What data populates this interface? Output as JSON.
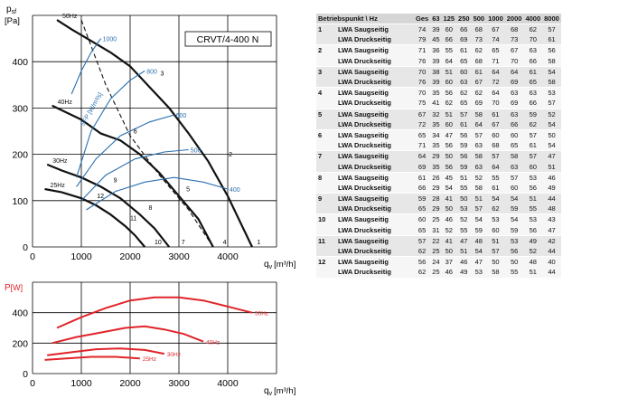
{
  "chart_data": [
    {
      "type": "line",
      "title": "CRVT/4-400 N",
      "ylabel_main": "p",
      "ylabel_sub": "sf",
      "yunit": "[Pa]",
      "xlabel_main": "q",
      "xlabel_sub": "v",
      "xunit": "[m³/h]",
      "xlim": [
        0,
        5000
      ],
      "ylim": [
        0,
        500
      ],
      "x_ticks": [
        "0",
        "1000",
        "2000",
        "3000",
        "4000"
      ],
      "y_ticks": [
        "0",
        "100",
        "200",
        "300",
        "400"
      ],
      "grid": true,
      "colors": {
        "fan_curves": "#111111",
        "sfp_curves": "#2a6fb0",
        "system_curves": "#111111"
      },
      "series": [
        {
          "name": "50Hz",
          "kind": "fan",
          "x": [
            500,
            800,
            1200,
            1600,
            2000,
            2400,
            2800,
            3200,
            3600,
            4000,
            4500
          ],
          "y": [
            490,
            470,
            445,
            420,
            390,
            345,
            300,
            245,
            185,
            110,
            0
          ]
        },
        {
          "name": "40Hz",
          "kind": "fan",
          "x": [
            400,
            700,
            1000,
            1400,
            1800,
            2200,
            2600,
            3000,
            3400,
            3700
          ],
          "y": [
            305,
            290,
            275,
            245,
            230,
            200,
            160,
            110,
            60,
            0
          ]
        },
        {
          "name": "30Hz",
          "kind": "fan",
          "x": [
            300,
            600,
            1000,
            1400,
            1800,
            2200,
            2500,
            2800
          ],
          "y": [
            178,
            165,
            150,
            130,
            105,
            70,
            40,
            0
          ]
        },
        {
          "name": "25Hz",
          "kind": "fan",
          "x": [
            250,
            600,
            1000,
            1300,
            1600,
            1900,
            2100,
            2300
          ],
          "y": [
            125,
            118,
            105,
            90,
            70,
            45,
            25,
            0
          ]
        },
        {
          "kind": "system",
          "x": [
            1000,
            1500,
            2000,
            2600,
            3200,
            3700
          ],
          "y": [
            490,
            350,
            240,
            155,
            80,
            0
          ]
        },
        {
          "name": "1000",
          "kind": "sfp",
          "x": [
            800,
            1000,
            1200,
            1400
          ],
          "y": [
            330,
            380,
            420,
            450
          ]
        },
        {
          "name": "800",
          "kind": "sfp",
          "x": [
            900,
            1200,
            1600,
            2000,
            2300
          ],
          "y": [
            150,
            250,
            320,
            360,
            380
          ]
        },
        {
          "name": "600",
          "kind": "sfp",
          "x": [
            900,
            1300,
            1800,
            2400,
            2900
          ],
          "y": [
            130,
            190,
            240,
            270,
            285
          ]
        },
        {
          "name": "500",
          "kind": "sfp",
          "x": [
            1000,
            1500,
            2100,
            2700,
            3200
          ],
          "y": [
            100,
            155,
            190,
            205,
            210
          ]
        },
        {
          "name": "400",
          "kind": "sfp",
          "x": [
            1100,
            1700,
            2300,
            2900,
            3500,
            4000
          ],
          "y": [
            80,
            120,
            140,
            150,
            140,
            125
          ]
        }
      ],
      "sfp_label": "SFP [W/m³/s]",
      "system_curve_labels": [
        "1",
        "4",
        "7",
        "10"
      ],
      "operating_points": [
        {
          "label": "2",
          "x": 4020,
          "y": 195
        },
        {
          "label": "3",
          "x": 2620,
          "y": 370
        },
        {
          "label": "5",
          "x": 3150,
          "y": 120
        },
        {
          "label": "6",
          "x": 2070,
          "y": 245
        },
        {
          "label": "8",
          "x": 2380,
          "y": 80
        },
        {
          "label": "9",
          "x": 1660,
          "y": 140
        },
        {
          "label": "11",
          "x": 2000,
          "y": 58
        },
        {
          "label": "12",
          "x": 1320,
          "y": 105
        }
      ]
    },
    {
      "type": "line",
      "ylabel_main": "P",
      "yunit": "[W]",
      "xlabel_main": "q",
      "xlabel_sub": "v",
      "xunit": "[m³/h]",
      "xlim": [
        0,
        5000
      ],
      "ylim": [
        0,
        600
      ],
      "x_ticks": [
        "0",
        "1000",
        "2000",
        "3000",
        "4000"
      ],
      "y_ticks": [
        "0",
        "200",
        "400"
      ],
      "grid": true,
      "colors": {
        "curves": "#e0242a"
      },
      "series": [
        {
          "name": "50Hz",
          "x": [
            500,
            1000,
            1500,
            2000,
            2500,
            3000,
            3500,
            4000,
            4500
          ],
          "y": [
            300,
            370,
            430,
            480,
            500,
            500,
            480,
            440,
            400
          ]
        },
        {
          "name": "40Hz",
          "x": [
            400,
            900,
            1400,
            1900,
            2300,
            2700,
            3100,
            3500
          ],
          "y": [
            200,
            240,
            270,
            300,
            310,
            290,
            260,
            210
          ]
        },
        {
          "name": "30Hz",
          "x": [
            300,
            800,
            1300,
            1800,
            2300,
            2700
          ],
          "y": [
            120,
            140,
            160,
            165,
            155,
            130
          ]
        },
        {
          "name": "25Hz",
          "x": [
            250,
            700,
            1200,
            1700,
            2200
          ],
          "y": [
            90,
            100,
            110,
            110,
            100
          ]
        }
      ]
    }
  ],
  "table": {
    "headers": [
      "Betriebspunkt \\ Hz",
      "Ges",
      "63",
      "125",
      "250",
      "500",
      "1000",
      "2000",
      "4000",
      "8000"
    ],
    "groups": [
      {
        "point": "1",
        "rows": [
          {
            "label": "LWA Saugseitig",
            "values": [
              "74",
              "39",
              "60",
              "66",
              "68",
              "67",
              "68",
              "62",
              "57"
            ]
          },
          {
            "label": "LWA Druckseitig",
            "values": [
              "79",
              "45",
              "66",
              "69",
              "73",
              "74",
              "73",
              "70",
              "61"
            ]
          }
        ]
      },
      {
        "point": "2",
        "rows": [
          {
            "label": "LWA Saugseitig",
            "values": [
              "71",
              "36",
              "55",
              "61",
              "62",
              "65",
              "67",
              "63",
              "56"
            ]
          },
          {
            "label": "LWA Druckseitig",
            "values": [
              "76",
              "39",
              "64",
              "65",
              "68",
              "71",
              "70",
              "66",
              "58"
            ]
          }
        ]
      },
      {
        "point": "3",
        "rows": [
          {
            "label": "LWA Saugseitig",
            "values": [
              "70",
              "38",
              "51",
              "60",
              "61",
              "64",
              "64",
              "61",
              "54"
            ]
          },
          {
            "label": "LWA Druckseitig",
            "values": [
              "76",
              "39",
              "60",
              "63",
              "67",
              "72",
              "69",
              "65",
              "58"
            ]
          }
        ]
      },
      {
        "point": "4",
        "rows": [
          {
            "label": "LWA Saugseitig",
            "values": [
              "70",
              "35",
              "56",
              "62",
              "62",
              "64",
              "63",
              "63",
              "53"
            ]
          },
          {
            "label": "LWA Druckseitig",
            "values": [
              "75",
              "41",
              "62",
              "65",
              "69",
              "70",
              "69",
              "66",
              "57"
            ]
          }
        ]
      },
      {
        "point": "5",
        "rows": [
          {
            "label": "LWA Saugseitig",
            "values": [
              "67",
              "32",
              "51",
              "57",
              "58",
              "61",
              "63",
              "59",
              "52"
            ]
          },
          {
            "label": "LWA Druckseitig",
            "values": [
              "72",
              "35",
              "60",
              "61",
              "64",
              "67",
              "66",
              "62",
              "54"
            ]
          }
        ]
      },
      {
        "point": "6",
        "rows": [
          {
            "label": "LWA Saugseitig",
            "values": [
              "65",
              "34",
              "47",
              "56",
              "57",
              "60",
              "60",
              "57",
              "50"
            ]
          },
          {
            "label": "LWA Druckseitig",
            "values": [
              "71",
              "35",
              "56",
              "59",
              "63",
              "68",
              "65",
              "61",
              "54"
            ]
          }
        ]
      },
      {
        "point": "7",
        "rows": [
          {
            "label": "LWA Saugseitig",
            "values": [
              "64",
              "29",
              "50",
              "56",
              "58",
              "57",
              "58",
              "57",
              "47"
            ]
          },
          {
            "label": "LWA Druckseitig",
            "values": [
              "69",
              "35",
              "56",
              "59",
              "63",
              "64",
              "63",
              "60",
              "51"
            ]
          }
        ]
      },
      {
        "point": "8",
        "rows": [
          {
            "label": "LWA Saugseitig",
            "values": [
              "61",
              "26",
              "45",
              "51",
              "52",
              "55",
              "57",
              "53",
              "46"
            ]
          },
          {
            "label": "LWA Druckseitig",
            "values": [
              "66",
              "29",
              "54",
              "55",
              "58",
              "61",
              "60",
              "56",
              "49"
            ]
          }
        ]
      },
      {
        "point": "9",
        "rows": [
          {
            "label": "LWA Saugseitig",
            "values": [
              "59",
              "28",
              "41",
              "50",
              "51",
              "54",
              "54",
              "51",
              "44"
            ]
          },
          {
            "label": "LWA Druckseitig",
            "values": [
              "65",
              "29",
              "50",
              "53",
              "57",
              "62",
              "59",
              "55",
              "48"
            ]
          }
        ]
      },
      {
        "point": "10",
        "rows": [
          {
            "label": "LWA Saugseitig",
            "values": [
              "60",
              "25",
              "46",
              "52",
              "54",
              "53",
              "54",
              "53",
              "43"
            ]
          },
          {
            "label": "LWA Druckseitig",
            "values": [
              "65",
              "31",
              "52",
              "55",
              "59",
              "60",
              "59",
              "56",
              "47"
            ]
          }
        ]
      },
      {
        "point": "11",
        "rows": [
          {
            "label": "LWA Saugseitig",
            "values": [
              "57",
              "22",
              "41",
              "47",
              "48",
              "51",
              "53",
              "49",
              "42"
            ]
          },
          {
            "label": "LWA Druckseitig",
            "values": [
              "62",
              "25",
              "50",
              "51",
              "54",
              "57",
              "56",
              "52",
              "44"
            ]
          }
        ]
      },
      {
        "point": "12",
        "rows": [
          {
            "label": "LWA Saugseitig",
            "values": [
              "56",
              "24",
              "37",
              "46",
              "47",
              "50",
              "50",
              "48",
              "40"
            ]
          },
          {
            "label": "LWA Druckseitig",
            "values": [
              "62",
              "25",
              "46",
              "49",
              "53",
              "58",
              "55",
              "51",
              "44"
            ]
          }
        ]
      }
    ]
  }
}
